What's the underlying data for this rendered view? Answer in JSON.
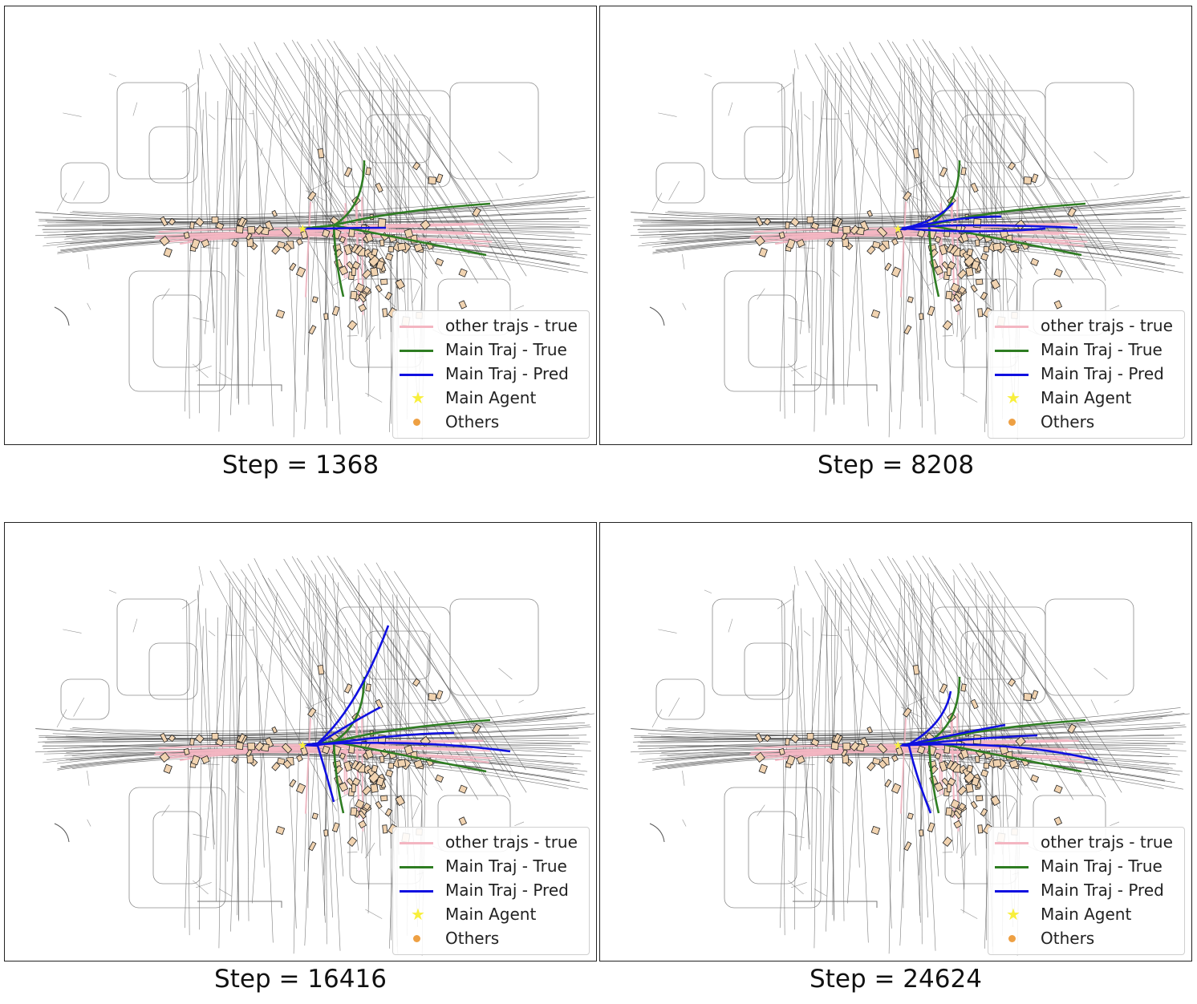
{
  "panels": [
    {
      "caption": "Step = 1368",
      "pred_spread": 0
    },
    {
      "caption": "Step = 8208",
      "pred_spread": 1
    },
    {
      "caption": "Step = 16416",
      "pred_spread": 2
    },
    {
      "caption": "Step = 24624",
      "pred_spread": 3
    }
  ],
  "legend": {
    "other_true": "other trajs - true",
    "main_true": "Main Traj - True",
    "main_pred": "Main Traj - Pred",
    "main_agent": "Main Agent",
    "others": "Others"
  },
  "colors": {
    "road": "#444444",
    "other_true": "#f4b6c2",
    "main_true": "#2e7d22",
    "main_pred": "#1010e0",
    "main_agent": "#f8ef3c",
    "others": "#eea043",
    "agent_box": "#f1d3b0"
  },
  "icons": {
    "main_agent": "star-icon",
    "others": "dot-icon"
  }
}
